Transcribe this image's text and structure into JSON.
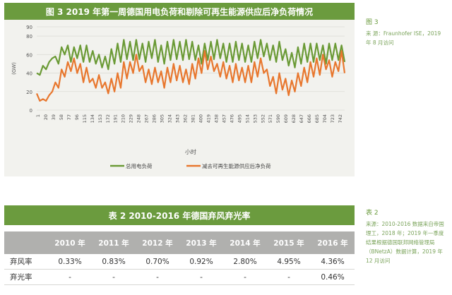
{
  "figure": {
    "title": "图 3  2019 年第一周德国用电负荷和剔除可再生能源供应后净负荷情况",
    "note_label": "图 3",
    "note_text": "来   源：Fraunhofer ISE，2019 年 8 月访问"
  },
  "chart_data": {
    "type": "line",
    "ylabel": "(GW)",
    "xlabel": "小时",
    "ylim": [
      0,
      90
    ],
    "yticks": [
      "0",
      "20",
      "40",
      "60",
      "80",
      "90"
    ],
    "xticks": [
      "1",
      "20",
      "39",
      "58",
      "77",
      "96",
      "115",
      "134",
      "153",
      "172",
      "191",
      "210",
      "229",
      "248",
      "267",
      "286",
      "305",
      "324",
      "343",
      "362",
      "381",
      "400",
      "419",
      "438",
      "457",
      "476",
      "495",
      "514",
      "533",
      "552",
      "571",
      "590",
      "609",
      "628",
      "647",
      "666",
      "685",
      "704",
      "723",
      "742"
    ],
    "grid": true,
    "legend_position": "bottom",
    "series": [
      {
        "name": "总用电负荷",
        "color": "#6a9a35",
        "values": [
          40,
          38,
          48,
          44,
          52,
          56,
          58,
          50,
          68,
          60,
          70,
          52,
          68,
          56,
          70,
          52,
          70,
          52,
          64,
          50,
          60,
          46,
          58,
          44,
          66,
          50,
          72,
          52,
          76,
          55,
          74,
          54,
          76,
          55,
          72,
          52,
          74,
          56,
          76,
          52,
          70,
          50,
          74,
          54,
          76,
          55,
          74,
          54,
          76,
          55,
          74,
          54,
          70,
          50,
          72,
          54,
          74,
          55,
          76,
          56,
          72,
          52,
          72,
          52,
          74,
          54,
          72,
          52,
          70,
          52,
          74,
          56,
          76,
          58,
          72,
          54,
          70,
          52,
          74,
          54,
          66,
          48,
          62,
          46,
          68,
          50,
          72,
          52,
          72,
          52,
          72,
          54,
          70,
          50,
          72,
          54,
          72,
          54,
          70,
          52
        ]
      },
      {
        "name": "减去可再生能源供应后净负荷",
        "color": "#e8772e",
        "values": [
          18,
          10,
          12,
          10,
          16,
          20,
          30,
          24,
          44,
          36,
          52,
          42,
          56,
          40,
          50,
          30,
          46,
          30,
          34,
          24,
          38,
          24,
          30,
          18,
          34,
          20,
          40,
          24,
          52,
          34,
          52,
          40,
          60,
          42,
          48,
          30,
          44,
          28,
          46,
          30,
          42,
          24,
          46,
          30,
          50,
          32,
          48,
          30,
          44,
          28,
          50,
          34,
          56,
          40,
          64,
          44,
          58,
          42,
          50,
          36,
          52,
          34,
          48,
          30,
          50,
          32,
          46,
          30,
          48,
          30,
          52,
          36,
          56,
          40,
          44,
          26,
          36,
          18,
          40,
          22,
          34,
          16,
          32,
          20,
          40,
          26,
          46,
          30,
          52,
          36,
          56,
          38,
          60,
          44,
          54,
          36,
          52,
          42,
          64,
          40
        ]
      }
    ]
  },
  "table": {
    "title": "表 2  2010-2016 年德国弃风弃光率",
    "note_label": "表 2",
    "note_text": "来源：2010-2016 数据来自帝国理工，2018 年；2019 年一季度结果根据德国联邦网络管理局（BNetzA）数据计算，2019 年 12 月访问",
    "headers": [
      "",
      "2010 年",
      "2011 年",
      "2012 年",
      "2013 年",
      "2014 年",
      "2015 年",
      "2016 年"
    ],
    "rows": [
      [
        "弃风率",
        "0.33%",
        "0.83%",
        "0.70%",
        "0.92%",
        "2.80%",
        "4.95%",
        "4.36%"
      ],
      [
        "弃光率",
        "-",
        "-",
        "-",
        "-",
        "-",
        "-",
        "0.46%"
      ]
    ]
  }
}
